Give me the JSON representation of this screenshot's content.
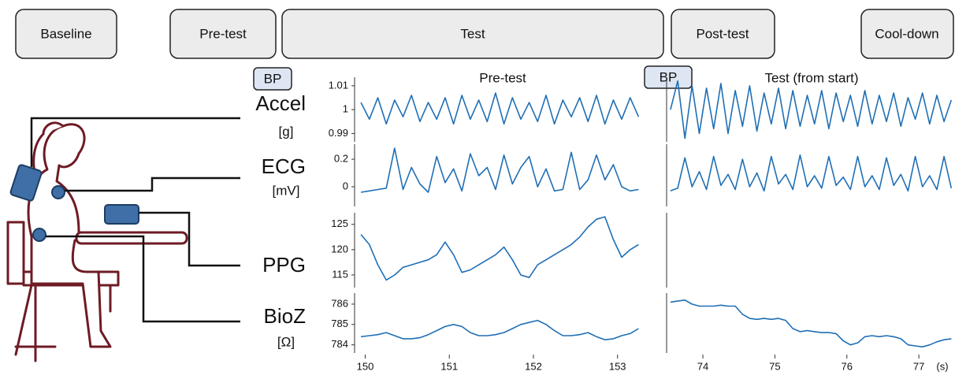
{
  "phases": [
    "Baseline",
    "Pre-test",
    "Test",
    "Post-test",
    "Cool-down"
  ],
  "bp_labels": [
    "BP",
    "BP"
  ],
  "signals": [
    {
      "name": "Accel",
      "unit": "[g]"
    },
    {
      "name": "ECG",
      "unit": "[mV]"
    },
    {
      "name": "PPG"
    },
    {
      "name": "BioZ",
      "unit": "[Ω]"
    }
  ],
  "x_unit": "(s)",
  "chart_data": [
    {
      "type": "line",
      "title": "Pre-test",
      "xlim": [
        149.93,
        153.34
      ],
      "xticks": [
        150,
        151,
        152,
        153
      ],
      "x": [
        149.95,
        150.05,
        150.15,
        150.25,
        150.35,
        150.45,
        150.55,
        150.65,
        150.75,
        150.85,
        150.95,
        151.05,
        151.15,
        151.25,
        151.35,
        151.45,
        151.55,
        151.65,
        151.75,
        151.85,
        151.95,
        152.05,
        152.15,
        152.25,
        152.35,
        152.45,
        152.55,
        152.65,
        152.75,
        152.85,
        152.95,
        153.05,
        153.15,
        153.25
      ],
      "series": [
        {
          "color": "#1f6fb5",
          "ylim": [
            0.9865,
            1.0136
          ],
          "yticks": [
            0.99,
            1,
            1.01
          ],
          "values": [
            1.003,
            0.996,
            1.005,
            0.994,
            1.004,
            0.997,
            1.006,
            0.995,
            1.003,
            0.996,
            1.005,
            0.994,
            1.006,
            0.996,
            1.004,
            0.995,
            1.007,
            0.994,
            1.005,
            0.996,
            1.003,
            0.995,
            1.006,
            0.994,
            1.004,
            0.997,
            1.005,
            0.995,
            1.006,
            0.994,
            1.004,
            0.996,
            1.005,
            0.997
          ]
        },
        {
          "color": "#1f6fb5",
          "ylim": [
            -0.143,
            0.309
          ],
          "yticks": [
            0,
            0.2
          ],
          "values": [
            -0.04,
            -0.03,
            -0.02,
            -0.01,
            0.28,
            -0.02,
            0.14,
            0.02,
            -0.04,
            0.22,
            0.03,
            0.13,
            -0.03,
            0.24,
            0.08,
            0.14,
            -0.02,
            0.23,
            0.02,
            0.14,
            0.22,
            0.0,
            0.13,
            -0.03,
            -0.02,
            0.25,
            -0.02,
            0.05,
            0.23,
            0.05,
            0.16,
            0.0,
            -0.03,
            -0.02
          ]
        },
        {
          "color": "#1f6fb5",
          "ylim": [
            112.5,
            127.3
          ],
          "yticks": [
            115,
            120,
            125
          ],
          "values": [
            123,
            121,
            117,
            114,
            115,
            116.5,
            117,
            117.5,
            118,
            119,
            121.5,
            119,
            115.5,
            116,
            117,
            118,
            119,
            120.5,
            118,
            115,
            114.5,
            117,
            118,
            119,
            120,
            121,
            122.5,
            124.5,
            126,
            126.5,
            122,
            118.5,
            120,
            121
          ]
        },
        {
          "color": "#1f6fb5",
          "ylim": [
            783.6,
            786.54
          ],
          "yticks": [
            784,
            785,
            786
          ],
          "values": [
            784.4,
            784.45,
            784.5,
            784.6,
            784.45,
            784.3,
            784.3,
            784.35,
            784.5,
            784.7,
            784.9,
            785.0,
            784.9,
            784.6,
            784.45,
            784.45,
            784.5,
            784.6,
            784.8,
            785.0,
            785.1,
            785.2,
            785.0,
            784.7,
            784.45,
            784.45,
            784.5,
            784.6,
            784.4,
            784.25,
            784.3,
            784.45,
            784.55,
            784.8
          ]
        }
      ]
    },
    {
      "type": "line",
      "title": "Test (from start)",
      "xlim": [
        73.54,
        77.48
      ],
      "xticks": [
        74,
        75,
        76,
        77
      ],
      "x": [
        73.55,
        73.65,
        73.75,
        73.85,
        73.95,
        74.05,
        74.15,
        74.25,
        74.35,
        74.45,
        74.55,
        74.65,
        74.75,
        74.85,
        74.95,
        75.05,
        75.15,
        75.25,
        75.35,
        75.45,
        75.55,
        75.65,
        75.75,
        75.85,
        75.95,
        76.05,
        76.15,
        76.25,
        76.35,
        76.45,
        76.55,
        76.65,
        76.75,
        76.85,
        76.95,
        77.05,
        77.15,
        77.25,
        77.35,
        77.45
      ],
      "series": [
        {
          "color": "#1f6fb5",
          "ylim": [
            0.9865,
            1.0136
          ],
          "values": [
            1.0,
            1.012,
            0.988,
            1.01,
            0.99,
            1.009,
            0.992,
            1.011,
            0.99,
            1.008,
            0.993,
            1.01,
            0.991,
            1.007,
            0.994,
            1.009,
            0.992,
            1.008,
            0.993,
            1.006,
            0.994,
            1.008,
            0.992,
            1.007,
            0.995,
            1.006,
            0.993,
            1.008,
            0.994,
            1.006,
            0.995,
            1.007,
            0.993,
            1.005,
            0.996,
            1.007,
            0.994,
            1.006,
            0.995,
            1.004
          ]
        },
        {
          "color": "#1f6fb5",
          "ylim": [
            -0.143,
            0.309
          ],
          "values": [
            -0.03,
            -0.01,
            0.21,
            0.0,
            0.11,
            -0.02,
            0.22,
            0.01,
            0.09,
            -0.02,
            0.2,
            0.0,
            0.1,
            -0.03,
            0.22,
            0.02,
            0.09,
            -0.02,
            0.23,
            0.0,
            0.08,
            -0.01,
            0.22,
            0.01,
            0.07,
            -0.02,
            0.22,
            0.0,
            0.08,
            -0.02,
            0.21,
            0.01,
            0.09,
            -0.03,
            0.22,
            0.0,
            0.08,
            -0.02,
            0.22,
            -0.01
          ]
        },
        {
          "color": "#1f6fb5",
          "ylim": [
            112.5,
            127.3
          ],
          "values": [
            null,
            null,
            null,
            null,
            null,
            null,
            null,
            null,
            null,
            null,
            null,
            null,
            null,
            null,
            null,
            null,
            null,
            null,
            null,
            null,
            null,
            null,
            null,
            null,
            null,
            null,
            null,
            null,
            null,
            null,
            null,
            null,
            null,
            null,
            null,
            null,
            null,
            null,
            null,
            null
          ]
        },
        {
          "color": "#1f6fb5",
          "ylim": [
            783.6,
            786.54
          ],
          "values": [
            786.1,
            786.15,
            786.2,
            786.0,
            785.9,
            785.9,
            785.9,
            785.95,
            785.9,
            785.9,
            785.5,
            785.3,
            785.25,
            785.3,
            785.25,
            785.3,
            785.2,
            784.8,
            784.65,
            784.7,
            784.65,
            784.6,
            784.6,
            784.55,
            784.2,
            784.0,
            784.1,
            784.4,
            784.45,
            784.4,
            784.45,
            784.4,
            784.3,
            784.0,
            783.95,
            783.9,
            784.0,
            784.15,
            784.25,
            784.3
          ]
        }
      ]
    }
  ]
}
